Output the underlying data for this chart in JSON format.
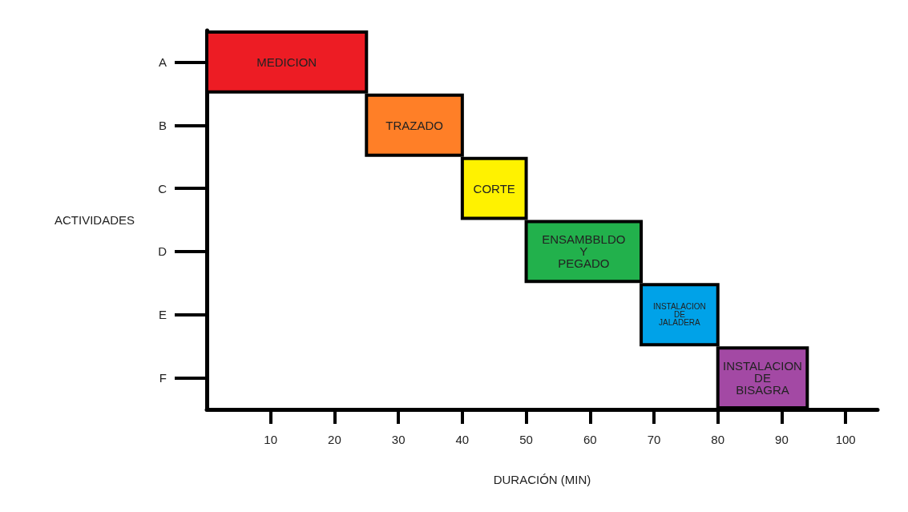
{
  "chart_data": {
    "type": "bar",
    "orientation": "horizontal",
    "xlabel": "DURACIÓN (MIN)",
    "ylabel": "ACTIVIDADES",
    "categories": [
      "A",
      "B",
      "C",
      "D",
      "E",
      "F"
    ],
    "base": [
      0,
      25,
      40,
      50,
      68,
      80
    ],
    "values": [
      25,
      15,
      10,
      18,
      12,
      14
    ],
    "colors": [
      "#ed1c24",
      "#ff7f27",
      "#fff200",
      "#22b14c",
      "#00a2e8",
      "#a349a4"
    ],
    "value_labels": [
      "MEDICION",
      "TRAZADO",
      "CORTE",
      "ENSAMBBLDO\nY\nPEGADO",
      "INSTALACION\nDE\nJALADERA",
      "INSTALACION\nDE\nBISAGRA"
    ],
    "xlim": [
      0,
      105
    ],
    "xticks": [
      10,
      20,
      30,
      40,
      50,
      60,
      70,
      80,
      90,
      100
    ],
    "grid": false
  }
}
